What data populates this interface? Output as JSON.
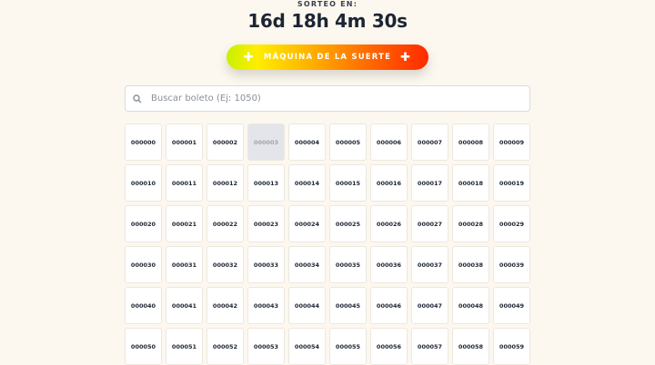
{
  "header": {
    "label": "SORTEO EN:",
    "countdown": "16d 18h 4m 30s"
  },
  "lucky_button": {
    "label": "MÁQUINA DE LA SUERTE",
    "icon": "plus-icon",
    "gradient": [
      "#c8f000",
      "#ffee00",
      "#ffa800",
      "#ff2a00"
    ]
  },
  "search": {
    "placeholder": "Buscar boleto (Ej: 1050)",
    "value": "",
    "icon": "search-icon"
  },
  "tickets": [
    {
      "number": "000000"
    },
    {
      "number": "000001"
    },
    {
      "number": "000002"
    },
    {
      "number": "000003",
      "status": "sold"
    },
    {
      "number": "000004"
    },
    {
      "number": "000005"
    },
    {
      "number": "000006"
    },
    {
      "number": "000007"
    },
    {
      "number": "000008"
    },
    {
      "number": "000009"
    },
    {
      "number": "000010"
    },
    {
      "number": "000011"
    },
    {
      "number": "000012"
    },
    {
      "number": "000013"
    },
    {
      "number": "000014"
    },
    {
      "number": "000015"
    },
    {
      "number": "000016"
    },
    {
      "number": "000017"
    },
    {
      "number": "000018"
    },
    {
      "number": "000019"
    },
    {
      "number": "000020"
    },
    {
      "number": "000021"
    },
    {
      "number": "000022"
    },
    {
      "number": "000023"
    },
    {
      "number": "000024"
    },
    {
      "number": "000025"
    },
    {
      "number": "000026"
    },
    {
      "number": "000027"
    },
    {
      "number": "000028"
    },
    {
      "number": "000029"
    },
    {
      "number": "000030"
    },
    {
      "number": "000031"
    },
    {
      "number": "000032"
    },
    {
      "number": "000033"
    },
    {
      "number": "000034"
    },
    {
      "number": "000035"
    },
    {
      "number": "000036"
    },
    {
      "number": "000037"
    },
    {
      "number": "000038"
    },
    {
      "number": "000039"
    },
    {
      "number": "000040"
    },
    {
      "number": "000041"
    },
    {
      "number": "000042"
    },
    {
      "number": "000043"
    },
    {
      "number": "000044"
    },
    {
      "number": "000045"
    },
    {
      "number": "000046"
    },
    {
      "number": "000047"
    },
    {
      "number": "000048"
    },
    {
      "number": "000049"
    },
    {
      "number": "000050"
    },
    {
      "number": "000051"
    },
    {
      "number": "000052"
    },
    {
      "number": "000053"
    },
    {
      "number": "000054"
    },
    {
      "number": "000055"
    },
    {
      "number": "000056"
    },
    {
      "number": "000057"
    },
    {
      "number": "000058"
    },
    {
      "number": "000059"
    }
  ]
}
